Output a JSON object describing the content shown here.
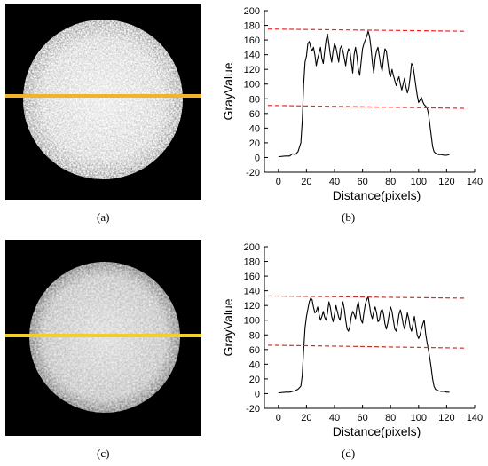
{
  "captions": {
    "a": "(a)",
    "b": "(b)",
    "c": "(c)",
    "d": "(d)"
  },
  "images": [
    {
      "id": "a",
      "line_color": "#f0b429",
      "spot_brightness": 0.9
    },
    {
      "id": "c",
      "line_color": "#f0d020",
      "spot_brightness": 0.78
    }
  ],
  "chart_data": [
    {
      "type": "line",
      "panel": "b",
      "xlabel": "Distance(pixels)",
      "ylabel": "GrayValue",
      "xlim": [
        -10,
        140
      ],
      "ylim": [
        -20,
        200
      ],
      "xticks": [
        0,
        20,
        40,
        60,
        80,
        100,
        120,
        140
      ],
      "yticks": [
        -20,
        0,
        20,
        40,
        60,
        80,
        100,
        120,
        140,
        160,
        180,
        200
      ],
      "line_color": "#000000",
      "ref_color": "#e8282a",
      "reference_lines": [
        {
          "x": [
            -10,
            140
          ],
          "y": [
            175,
            172
          ]
        },
        {
          "x": [
            -10,
            140
          ],
          "y": [
            71,
            67
          ]
        }
      ],
      "series": [
        {
          "x": [
            0,
            5,
            8,
            10,
            12,
            14,
            16,
            17,
            18,
            19,
            20,
            21,
            22,
            23,
            24,
            25,
            26,
            27,
            28,
            29,
            30,
            31,
            32,
            33,
            34,
            35,
            36,
            37,
            38,
            39,
            40,
            41,
            42,
            43,
            44,
            45,
            46,
            47,
            48,
            49,
            50,
            51,
            52,
            53,
            54,
            55,
            56,
            57,
            58,
            59,
            60,
            61,
            62,
            63,
            64,
            65,
            66,
            67,
            68,
            69,
            70,
            71,
            72,
            73,
            74,
            75,
            76,
            77,
            78,
            79,
            80,
            81,
            82,
            83,
            84,
            85,
            86,
            87,
            88,
            89,
            90,
            91,
            92,
            93,
            94,
            95,
            96,
            97,
            98,
            99,
            100,
            101,
            102,
            103,
            104,
            105,
            106,
            107,
            108,
            109,
            110,
            111,
            112,
            113,
            114,
            116,
            118,
            120,
            122
          ],
          "y": [
            1,
            2,
            2,
            5,
            4,
            8,
            20,
            50,
            100,
            130,
            138,
            155,
            158,
            150,
            145,
            150,
            140,
            125,
            135,
            142,
            150,
            135,
            128,
            145,
            160,
            168,
            155,
            140,
            130,
            145,
            155,
            150,
            140,
            130,
            148,
            152,
            145,
            135,
            125,
            140,
            148,
            145,
            130,
            115,
            140,
            150,
            138,
            120,
            112,
            130,
            148,
            155,
            160,
            165,
            172,
            165,
            150,
            130,
            115,
            135,
            145,
            150,
            138,
            125,
            118,
            135,
            148,
            145,
            130,
            115,
            110,
            120,
            112,
            105,
            98,
            105,
            110,
            100,
            92,
            100,
            108,
            96,
            88,
            95,
            110,
            128,
            125,
            112,
            98,
            85,
            75,
            78,
            82,
            76,
            72,
            70,
            68,
            60,
            45,
            30,
            15,
            8,
            6,
            5,
            4,
            4,
            3,
            3,
            4
          ]
        }
      ]
    },
    {
      "type": "line",
      "panel": "d",
      "xlabel": "Distance(pixels)",
      "ylabel": "GrayValue",
      "xlim": [
        -10,
        140
      ],
      "ylim": [
        -20,
        200
      ],
      "xticks": [
        0,
        20,
        40,
        60,
        80,
        100,
        120,
        140
      ],
      "yticks": [
        -20,
        0,
        20,
        40,
        60,
        80,
        100,
        120,
        140,
        160,
        180,
        200
      ],
      "line_color": "#000000",
      "ref_color": "#c0392b",
      "reference_lines": [
        {
          "x": [
            -10,
            140
          ],
          "y": [
            133,
            130
          ]
        },
        {
          "x": [
            -10,
            140
          ],
          "y": [
            66,
            62
          ]
        }
      ],
      "series": [
        {
          "x": [
            0,
            5,
            8,
            10,
            12,
            14,
            16,
            17,
            18,
            19,
            20,
            21,
            22,
            23,
            24,
            25,
            26,
            27,
            28,
            29,
            30,
            31,
            32,
            33,
            34,
            35,
            36,
            37,
            38,
            39,
            40,
            41,
            42,
            43,
            44,
            45,
            46,
            47,
            48,
            49,
            50,
            51,
            52,
            53,
            54,
            55,
            56,
            57,
            58,
            59,
            60,
            61,
            62,
            63,
            64,
            65,
            66,
            67,
            68,
            69,
            70,
            71,
            72,
            73,
            74,
            75,
            76,
            77,
            78,
            79,
            80,
            81,
            82,
            83,
            84,
            85,
            86,
            87,
            88,
            89,
            90,
            91,
            92,
            93,
            94,
            95,
            96,
            97,
            98,
            99,
            100,
            101,
            102,
            103,
            104,
            105,
            106,
            107,
            108,
            109,
            110,
            111,
            112,
            114,
            116,
            118,
            120,
            122
          ],
          "y": [
            1,
            2,
            2,
            3,
            4,
            6,
            10,
            25,
            60,
            90,
            105,
            115,
            125,
            130,
            128,
            118,
            110,
            112,
            118,
            108,
            100,
            105,
            112,
            104,
            100,
            110,
            125,
            118,
            105,
            98,
            108,
            120,
            112,
            104,
            100,
            115,
            125,
            115,
            100,
            88,
            85,
            92,
            105,
            112,
            108,
            102,
            118,
            125,
            112,
            100,
            96,
            110,
            122,
            128,
            132,
            120,
            108,
            102,
            112,
            118,
            110,
            98,
            100,
            112,
            115,
            108,
            95,
            88,
            96,
            108,
            118,
            112,
            100,
            88,
            85,
            95,
            108,
            114,
            106,
            95,
            88,
            98,
            110,
            102,
            90,
            85,
            95,
            105,
            92,
            80,
            75,
            80,
            88,
            95,
            100,
            82,
            70,
            60,
            48,
            35,
            20,
            10,
            6,
            4,
            3,
            3,
            2,
            2
          ]
        }
      ]
    }
  ]
}
